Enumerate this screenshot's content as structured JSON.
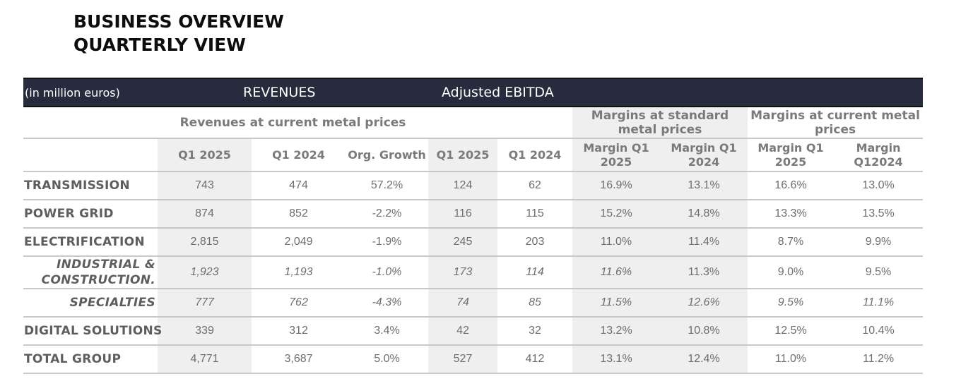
{
  "title": {
    "line1": "BUSINESS OVERVIEW",
    "line2": "QUARTERLY VIEW"
  },
  "banner": {
    "unit": "(in million euros)",
    "revenues": "REVENUES",
    "ebitda": "Adjusted EBITDA"
  },
  "groups": {
    "revenues_current": "Revenues at current metal prices",
    "margins_standard": "Margins at standard metal prices",
    "margins_current": "Margins at current metal prices"
  },
  "columns": {
    "rev_q1_2025": "Q1 2025",
    "rev_q1_2024": "Q1 2024",
    "org_growth": "Org. Growth",
    "ebitda_q1_2025": "Q1 2025",
    "ebitda_q1_2024": "Q1 2024",
    "std_margin_q1_2025": "Margin Q1 2025",
    "std_margin_q1_2024": "Margin Q1 2024",
    "cur_margin_q1_2025": "Margin Q1 2025",
    "cur_margin_q1_2024": "Margin Q12024"
  },
  "rows": [
    {
      "label": "TRANSMISSION",
      "cells": [
        "743",
        "474",
        "57.2%",
        "124",
        "62",
        "16.9%",
        "13.1%",
        "16.6%",
        "13.0%"
      ]
    },
    {
      "label": "POWER GRID",
      "cells": [
        "874",
        "852",
        "-2.2%",
        "116",
        "115",
        "15.2%",
        "14.8%",
        "13.3%",
        "13.5%"
      ]
    },
    {
      "label": "ELECTRIFICATION",
      "cells": [
        "2,815",
        "2,049",
        "-1.9%",
        "245",
        "203",
        "11.0%",
        "11.4%",
        "8.7%",
        "9.9%"
      ]
    },
    {
      "label": "INDUSTRIAL & CONSTRUCTION.",
      "cells": [
        "1,923",
        "1,193",
        "-1.0%",
        "173",
        "114",
        "11.6%",
        "11.3%",
        "9.0%",
        "9.5%"
      ]
    },
    {
      "label": "SPECIALTIES",
      "cells": [
        "777",
        "762",
        "-4.3%",
        "74",
        "85",
        "11.5%",
        "12.6%",
        "9.5%",
        "11.1%"
      ]
    },
    {
      "label": "DIGITAL SOLUTIONS",
      "cells": [
        "339",
        "312",
        "3.4%",
        "42",
        "32",
        "13.2%",
        "10.8%",
        "12.5%",
        "10.4%"
      ]
    },
    {
      "label": "TOTAL GROUP",
      "cells": [
        "4,771",
        "3,687",
        "5.0%",
        "527",
        "412",
        "13.1%",
        "12.4%",
        "11.0%",
        "11.2%"
      ]
    }
  ]
}
